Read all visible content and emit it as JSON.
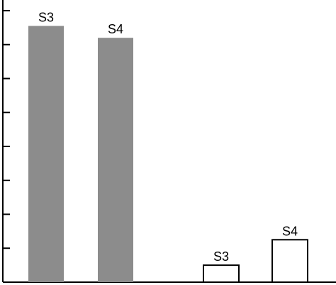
{
  "chart_data": {
    "type": "bar",
    "title": "",
    "xlabel": "",
    "ylabel": "",
    "ylim": [
      0,
      8
    ],
    "yticks": [
      0,
      1,
      2,
      3,
      4,
      5,
      6,
      7,
      8
    ],
    "grid": false,
    "bars": [
      {
        "label": "S3",
        "value": 7.55,
        "style": "filled"
      },
      {
        "label": "S4",
        "value": 7.2,
        "style": "filled"
      },
      {
        "label": "S3",
        "value": 0.5,
        "style": "outline"
      },
      {
        "label": "S4",
        "value": 1.25,
        "style": "outline"
      }
    ],
    "colors": {
      "filled": "#8c8c8c",
      "outline_fill": "#ffffff",
      "stroke": "#000000"
    }
  }
}
